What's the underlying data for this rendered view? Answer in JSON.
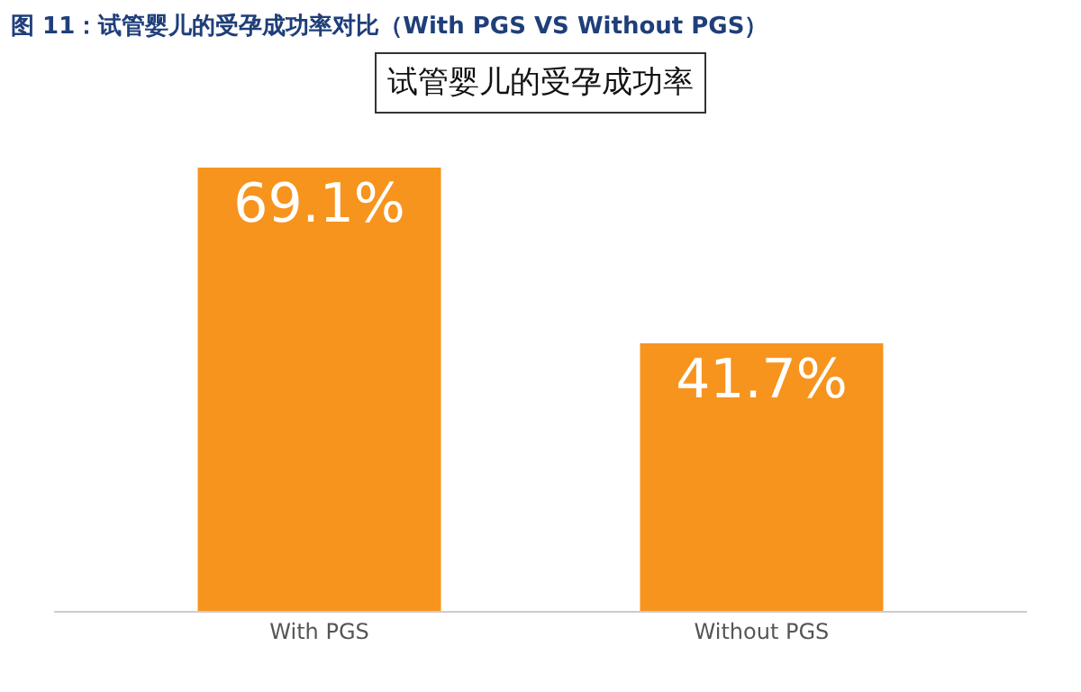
{
  "chart_data": {
    "type": "bar",
    "title": "图 11：试管婴儿的受孕成功率对比（With PGS VS Without PGS）",
    "subtitle": "试管婴儿的受孕成功率",
    "categories": [
      "With PGS",
      "Without PGS"
    ],
    "values": [
      69.1,
      41.7
    ],
    "value_labels": [
      "69.1%",
      "41.7%"
    ],
    "color": "#f7941d"
  }
}
